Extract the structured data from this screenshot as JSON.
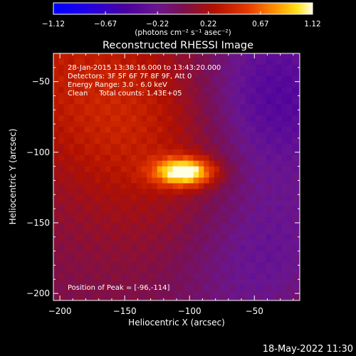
{
  "chart_data": {
    "type": "heatmap",
    "title": "Reconstructed RHESSI Image",
    "xlabel": "Heliocentric X (arcsec)",
    "ylabel": "Heliocentric Y (arcsec)",
    "x_range": [
      -205,
      -15
    ],
    "y_range": [
      -205,
      -30
    ],
    "x_ticks": [
      -200,
      -150,
      -100,
      -50
    ],
    "y_ticks": [
      -200,
      -150,
      -100,
      -50
    ],
    "x_tick_labels": [
      "−200",
      "−150",
      "−100",
      "−50"
    ],
    "y_tick_labels": [
      "−200",
      "−150",
      "−100",
      "−50"
    ],
    "colorbar": {
      "range": [
        -1.12,
        1.12
      ],
      "ticks": [
        -1.12,
        -0.67,
        -0.22,
        0.22,
        0.67,
        1.12
      ],
      "tick_labels": [
        "−1.12",
        "−0.67",
        "−0.22",
        "0.22",
        "0.67",
        "1.12"
      ],
      "unit_label": "(photons cm⁻² s⁻¹ asec⁻²)"
    },
    "info_lines": [
      "28-Jan-2015 13:38:16.000 to 13:43:20.000",
      "Detectors: 3F 5F 6F 7F 8F 9F, Att 0",
      "Energy Range: 3.0 - 6.0 keV",
      "Clean     Total counts: 1.43E+05"
    ],
    "peak_label": "Position of Peak = [-96,-114]",
    "peak_position": [
      -96,
      -114
    ],
    "peak_value": 1.12,
    "colors": {
      "background": "#000000",
      "axis": "#ffffff",
      "colormap": [
        "#0000ff",
        "#4b00a0",
        "#6a1fa0",
        "#7a0d55",
        "#b01000",
        "#e63000",
        "#ff8c00",
        "#ffe01a",
        "#ffffe6"
      ]
    }
  },
  "footer": {
    "timestamp": "18-May-2022 11:30"
  }
}
